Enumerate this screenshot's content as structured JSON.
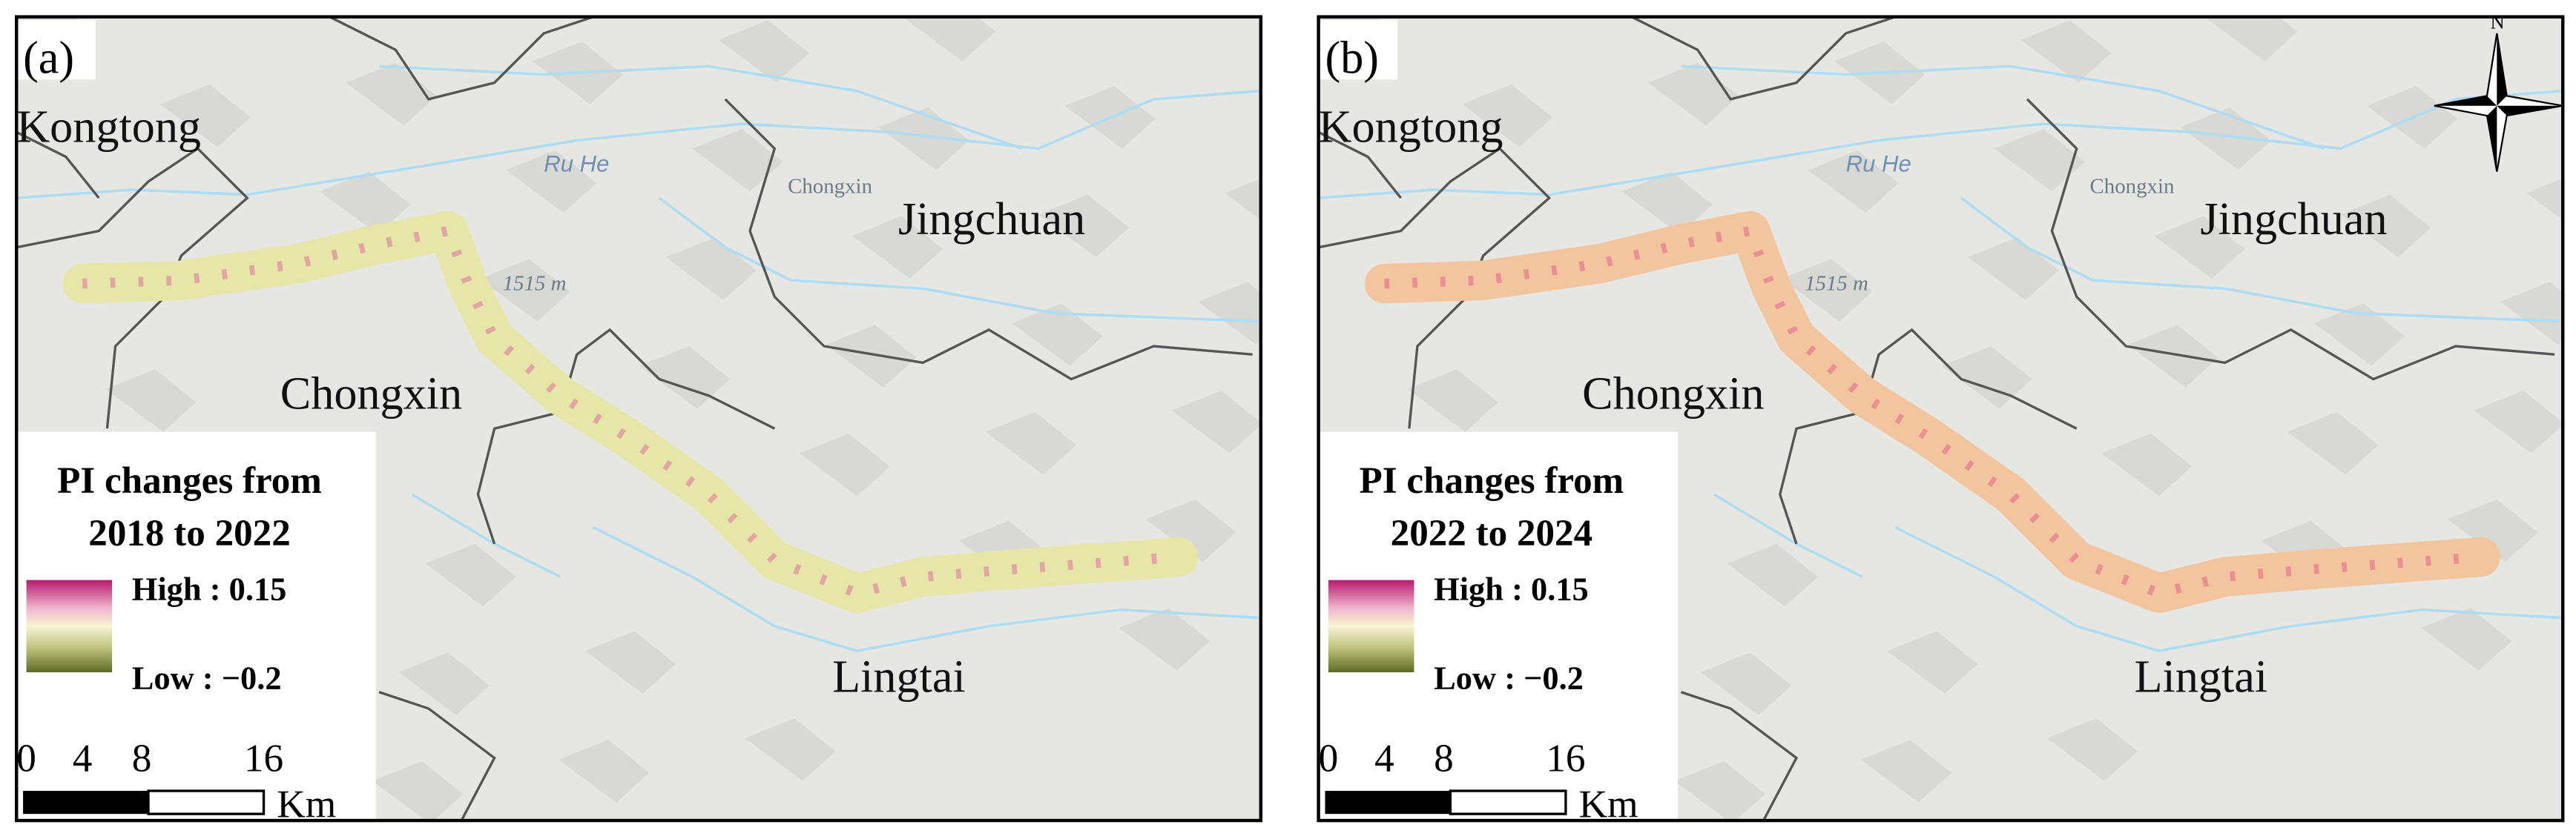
{
  "panels": [
    {
      "label": "(a)",
      "places": [
        "Kongtong",
        "Jingchuan",
        "Chongxin",
        "Lingtai"
      ],
      "basemap_labels": [
        "Ru He",
        "Chongxin",
        "1515 m"
      ],
      "legend": {
        "title_lines": [
          "PI changes from",
          "2018 to 2022"
        ],
        "high": "High : 0.15",
        "low": "Low : −0.2"
      },
      "scale_bar": {
        "ticks": [
          "0",
          "4",
          "8",
          "16"
        ],
        "unit": "Km"
      }
    },
    {
      "label": "(b)",
      "places": [
        "Kongtong",
        "Jingchuan",
        "Chongxin",
        "Lingtai"
      ],
      "basemap_labels": [
        "Ru He",
        "Chongxin",
        "1515 m"
      ],
      "legend": {
        "title_lines": [
          "PI changes from",
          "2022 to 2024"
        ],
        "high": "High : 0.15",
        "low": "Low : −0.2"
      },
      "scale_bar": {
        "ticks": [
          "0",
          "4",
          "8",
          "16"
        ],
        "unit": "Km"
      }
    }
  ],
  "north_arrow": "N"
}
